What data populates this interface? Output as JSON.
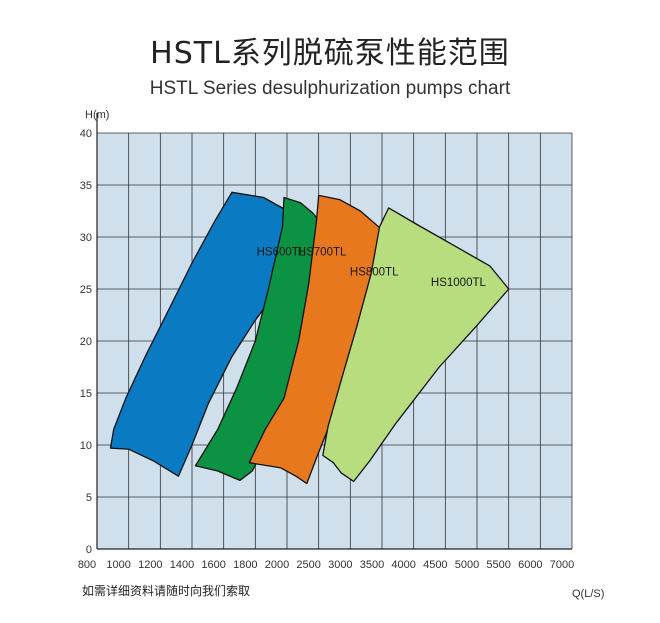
{
  "header": {
    "title": "HSTL系列脱硫泵性能范围",
    "subtitle": "HSTL Series desulphurization pumps chart"
  },
  "footer": {
    "note": "如需详细资料请随时向我们索取"
  },
  "chart_data": {
    "type": "area",
    "title": "HSTL系列脱硫泵性能范围",
    "subtitle": "HSTL Series desulphurization pumps chart",
    "xlabel": "Q(L/S)",
    "ylabel": "H(m)",
    "x_ticks": [
      800,
      1000,
      1200,
      1400,
      1600,
      1800,
      2000,
      2500,
      3000,
      3500,
      4000,
      4500,
      5000,
      5500,
      6000,
      7000
    ],
    "y_ticks": [
      0,
      5,
      10,
      15,
      20,
      25,
      30,
      35,
      40
    ],
    "ylim": [
      0,
      40
    ],
    "grid": true,
    "colors": {
      "plot_background": "#cfe0ec",
      "grid": "#333333"
    },
    "series": [
      {
        "name": "HS600TL",
        "color": "#0a7bc2",
        "outline": [
          [
            880,
            9.7
          ],
          [
            1000,
            9.6
          ],
          [
            1150,
            8.5
          ],
          [
            1310,
            7.0
          ],
          [
            1400,
            10.0
          ],
          [
            1500,
            14.0
          ],
          [
            1650,
            18.5
          ],
          [
            1800,
            22.0
          ],
          [
            1920,
            24.5
          ],
          [
            2050,
            26.5
          ],
          [
            2210,
            27.8
          ],
          [
            2130,
            30.5
          ],
          [
            2010,
            32.5
          ],
          [
            1850,
            33.8
          ],
          [
            1650,
            34.3
          ],
          [
            1540,
            31.5
          ],
          [
            1400,
            27.5
          ],
          [
            1250,
            23.0
          ],
          [
            1100,
            18.5
          ],
          [
            980,
            14.5
          ],
          [
            900,
            11.5
          ]
        ],
        "label_pos": [
          1960,
          28.2
        ]
      },
      {
        "name": "HS700TL",
        "color": "#0c9243",
        "outline": [
          [
            1420,
            8.0
          ],
          [
            1560,
            7.5
          ],
          [
            1700,
            6.6
          ],
          [
            1780,
            7.5
          ],
          [
            1900,
            11.0
          ],
          [
            2050,
            15.0
          ],
          [
            2200,
            18.5
          ],
          [
            2450,
            22.0
          ],
          [
            2650,
            24.0
          ],
          [
            2900,
            26.5
          ],
          [
            2790,
            29.0
          ],
          [
            2600,
            30.8
          ],
          [
            2400,
            32.3
          ],
          [
            2200,
            33.3
          ],
          [
            1980,
            33.8
          ],
          [
            1970,
            31.0
          ],
          [
            1880,
            25.0
          ],
          [
            1800,
            20.0
          ],
          [
            1680,
            15.5
          ],
          [
            1560,
            11.5
          ]
        ],
        "label_pos": [
          2550,
          28.2
        ]
      },
      {
        "name": "HS800TL",
        "color": "#e8781e",
        "outline": [
          [
            1760,
            8.3
          ],
          [
            1960,
            7.8
          ],
          [
            2130,
            7.0
          ],
          [
            2300,
            6.3
          ],
          [
            2480,
            9.0
          ],
          [
            2700,
            12.5
          ],
          [
            3050,
            17.5
          ],
          [
            3350,
            21.0
          ],
          [
            3680,
            24.0
          ],
          [
            4000,
            26.5
          ],
          [
            3800,
            29.0
          ],
          [
            3480,
            30.8
          ],
          [
            3150,
            32.5
          ],
          [
            2820,
            33.6
          ],
          [
            2500,
            34.0
          ],
          [
            2460,
            31.5
          ],
          [
            2330,
            25.5
          ],
          [
            2170,
            20.0
          ],
          [
            1980,
            14.5
          ],
          [
            1860,
            11.5
          ]
        ],
        "label_pos": [
          3370,
          26.3
        ]
      },
      {
        "name": "HS1000TL",
        "color": "#b8dd7e",
        "outline": [
          [
            2560,
            9.0
          ],
          [
            2720,
            8.3
          ],
          [
            2850,
            7.3
          ],
          [
            3050,
            6.5
          ],
          [
            3300,
            8.5
          ],
          [
            3700,
            12.0
          ],
          [
            4400,
            17.5
          ],
          [
            5000,
            21.5
          ],
          [
            5500,
            25.0
          ],
          [
            5200,
            27.2
          ],
          [
            4600,
            29.3
          ],
          [
            4050,
            31.2
          ],
          [
            3600,
            32.8
          ],
          [
            3460,
            31.0
          ],
          [
            3320,
            26.5
          ],
          [
            3100,
            21.5
          ],
          [
            2860,
            16.5
          ],
          [
            2640,
            11.8
          ]
        ],
        "label_pos": [
          4700,
          25.3
        ]
      }
    ]
  }
}
